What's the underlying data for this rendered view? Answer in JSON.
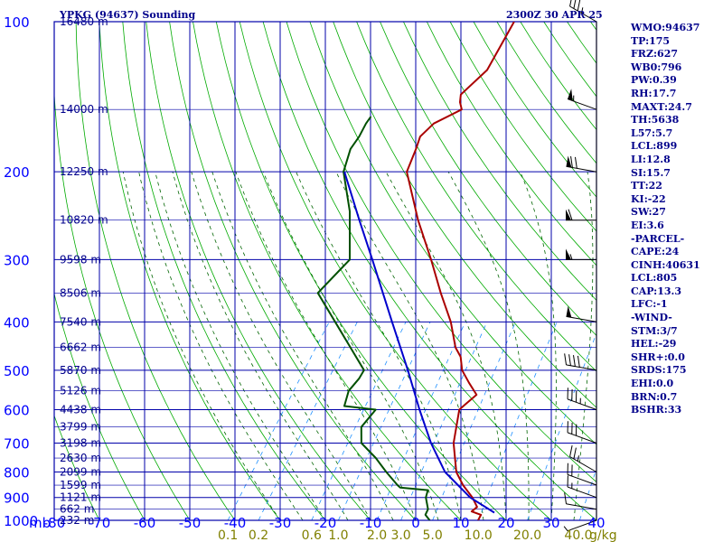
{
  "title_left": "YPKG (94637) Sounding",
  "title_right": "2300Z 30 APR 25",
  "pressure_unit": "mb",
  "mixing_ratio_unit": "g/kg",
  "pressure_labels": [
    "100",
    "200",
    "300",
    "400",
    "500",
    "600",
    "700",
    "800",
    "900",
    "1000"
  ],
  "temperature_labels": [
    "-80",
    "-70",
    "-60",
    "-50",
    "-40",
    "-30",
    "-20",
    "-10",
    "0",
    "10",
    "20",
    "30",
    "40"
  ],
  "mixing_ratio_labels": [
    "0.1",
    "0.2",
    "0.6",
    "1.0",
    "2.0",
    "3.0",
    "5.0",
    "10.0",
    "20.0",
    "40.0"
  ],
  "colors": {
    "axis": "#0000ff",
    "grid": "#0000aa",
    "dry_adiabat": "#00aa00",
    "moist_adiabat": "#006400",
    "mixing_ratio": "#1e90ff",
    "temperature": "#aa0000",
    "dewpoint": "#005000",
    "parcel": "#0000cc",
    "wind": "#000000",
    "text": "#00008b"
  },
  "indices": [
    "WMO:94637",
    "TP:175",
    "FRZ:627",
    "WB0:796",
    "PW:0.39",
    "RH:17.7",
    "MAXT:24.7",
    "TH:5638",
    "L57:5.7",
    "LCL:899",
    "LI:12.8",
    "SI:15.7",
    "TT:22",
    "KI:-22",
    "SW:27",
    "EI:3.6",
    "-PARCEL-",
    "CAPE:24",
    "CINH:40631",
    "LCL:805",
    "CAP:13.3",
    "LFC:-1",
    "-WIND-",
    "STM:3/7",
    "HEL:-29",
    "SHR+:0.0",
    "SRDS:175",
    "EHI:0.0",
    "BRN:0.7",
    "BSHR:33"
  ],
  "chart_data": {
    "type": "line",
    "title": "YPKG (94637) Sounding",
    "subtitle": "2300Z 30 APR 25",
    "ylabel": "mb",
    "mixing_ratio_unit": "g/kg",
    "pressure_axis": {
      "scale": "log",
      "range": [
        1000,
        100
      ],
      "ticks": [
        100,
        200,
        300,
        400,
        500,
        600,
        700,
        800,
        900,
        1000
      ]
    },
    "temperature_axis": {
      "range": [
        -80,
        40
      ],
      "skewed": true,
      "ticks": [
        -80,
        -70,
        -60,
        -50,
        -40,
        -30,
        -20,
        -10,
        0,
        10,
        20,
        30,
        40
      ]
    },
    "grid": true,
    "height_labels": [
      {
        "p": 100,
        "label": "16480 m"
      },
      {
        "p": 150,
        "label": "14000 m"
      },
      {
        "p": 200,
        "label": "12250 m"
      },
      {
        "p": 250,
        "label": "10820 m"
      },
      {
        "p": 300,
        "label": "9598 m"
      },
      {
        "p": 350,
        "label": "8506 m"
      },
      {
        "p": 400,
        "label": "7540 m"
      },
      {
        "p": 450,
        "label": "6662 m"
      },
      {
        "p": 500,
        "label": "5870 m"
      },
      {
        "p": 550,
        "label": "5126 m"
      },
      {
        "p": 600,
        "label": "4438 m"
      },
      {
        "p": 650,
        "label": "3799 m"
      },
      {
        "p": 700,
        "label": "3198 m"
      },
      {
        "p": 750,
        "label": "2630 m"
      },
      {
        "p": 800,
        "label": "2099 m"
      },
      {
        "p": 850,
        "label": "1599 m"
      },
      {
        "p": 900,
        "label": "1121 m"
      },
      {
        "p": 950,
        "label": "662 m"
      },
      {
        "p": 1000,
        "label": "232 m"
      }
    ],
    "series": [
      {
        "key": "temperature",
        "color": "#aa0000",
        "points": [
          [
            1000,
            13.8
          ],
          [
            975,
            13.6
          ],
          [
            960,
            11.0
          ],
          [
            940,
            11.5
          ],
          [
            900,
            9.0
          ],
          [
            850,
            5.0
          ],
          [
            800,
            1.5
          ],
          [
            700,
            -3.6
          ],
          [
            600,
            -7.5
          ],
          [
            585,
            -7.0
          ],
          [
            560,
            -6.0
          ],
          [
            530,
            -9.5
          ],
          [
            500,
            -13.0
          ],
          [
            470,
            -15.4
          ],
          [
            450,
            -18.0
          ],
          [
            400,
            -23.0
          ],
          [
            350,
            -29.7
          ],
          [
            300,
            -37.0
          ],
          [
            250,
            -46.0
          ],
          [
            200,
            -56.0
          ],
          [
            180,
            -57.5
          ],
          [
            170,
            -58.5
          ],
          [
            160,
            -57.5
          ],
          [
            150,
            -53.5
          ],
          [
            145,
            -55.0
          ],
          [
            140,
            -56.0
          ],
          [
            125,
            -54.0
          ],
          [
            100,
            -55.5
          ]
        ]
      },
      {
        "key": "dewpoint",
        "color": "#005000",
        "points": [
          [
            1000,
            3.1
          ],
          [
            975,
            1.3
          ],
          [
            950,
            1.0
          ],
          [
            900,
            -1.3
          ],
          [
            870,
            -2.0
          ],
          [
            860,
            -8.5
          ],
          [
            850,
            -9.5
          ],
          [
            800,
            -14.0
          ],
          [
            750,
            -18.5
          ],
          [
            700,
            -24.0
          ],
          [
            650,
            -26.5
          ],
          [
            600,
            -26.0
          ],
          [
            590,
            -33.5
          ],
          [
            550,
            -34.9
          ],
          [
            520,
            -34.5
          ],
          [
            500,
            -34.7
          ],
          [
            350,
            -56.9
          ],
          [
            300,
            -55.0
          ],
          [
            240,
            -62.5
          ],
          [
            200,
            -70.0
          ],
          [
            180,
            -72.0
          ],
          [
            170,
            -72.0
          ],
          [
            160,
            -72.5
          ],
          [
            155,
            -72.5
          ]
        ]
      },
      {
        "key": "parcel",
        "color": "#0000cc",
        "points": [
          [
            965,
            16.2
          ],
          [
            900,
            8.5
          ],
          [
            800,
            -1.0
          ],
          [
            700,
            -8.6
          ],
          [
            600,
            -16.3
          ],
          [
            500,
            -25.0
          ],
          [
            400,
            -36.0
          ],
          [
            300,
            -50.0
          ],
          [
            250,
            -59.0
          ],
          [
            200,
            -69.8
          ]
        ]
      }
    ],
    "wind_barbs": [
      {
        "p": 1000,
        "dir": 250,
        "spd": 5
      },
      {
        "p": 950,
        "dir": 280,
        "spd": 10
      },
      {
        "p": 900,
        "dir": 290,
        "spd": 15
      },
      {
        "p": 850,
        "dir": 290,
        "spd": 20
      },
      {
        "p": 800,
        "dir": 300,
        "spd": 25
      },
      {
        "p": 700,
        "dir": 290,
        "spd": 30
      },
      {
        "p": 600,
        "dir": 290,
        "spd": 35
      },
      {
        "p": 500,
        "dir": 280,
        "spd": 40
      },
      {
        "p": 400,
        "dir": 280,
        "spd": 50
      },
      {
        "p": 300,
        "dir": 270,
        "spd": 55
      },
      {
        "p": 250,
        "dir": 270,
        "spd": 60
      },
      {
        "p": 200,
        "dir": 280,
        "spd": 70
      },
      {
        "p": 150,
        "dir": 290,
        "spd": 55
      },
      {
        "p": 100,
        "dir": 300,
        "spd": 35
      }
    ]
  }
}
